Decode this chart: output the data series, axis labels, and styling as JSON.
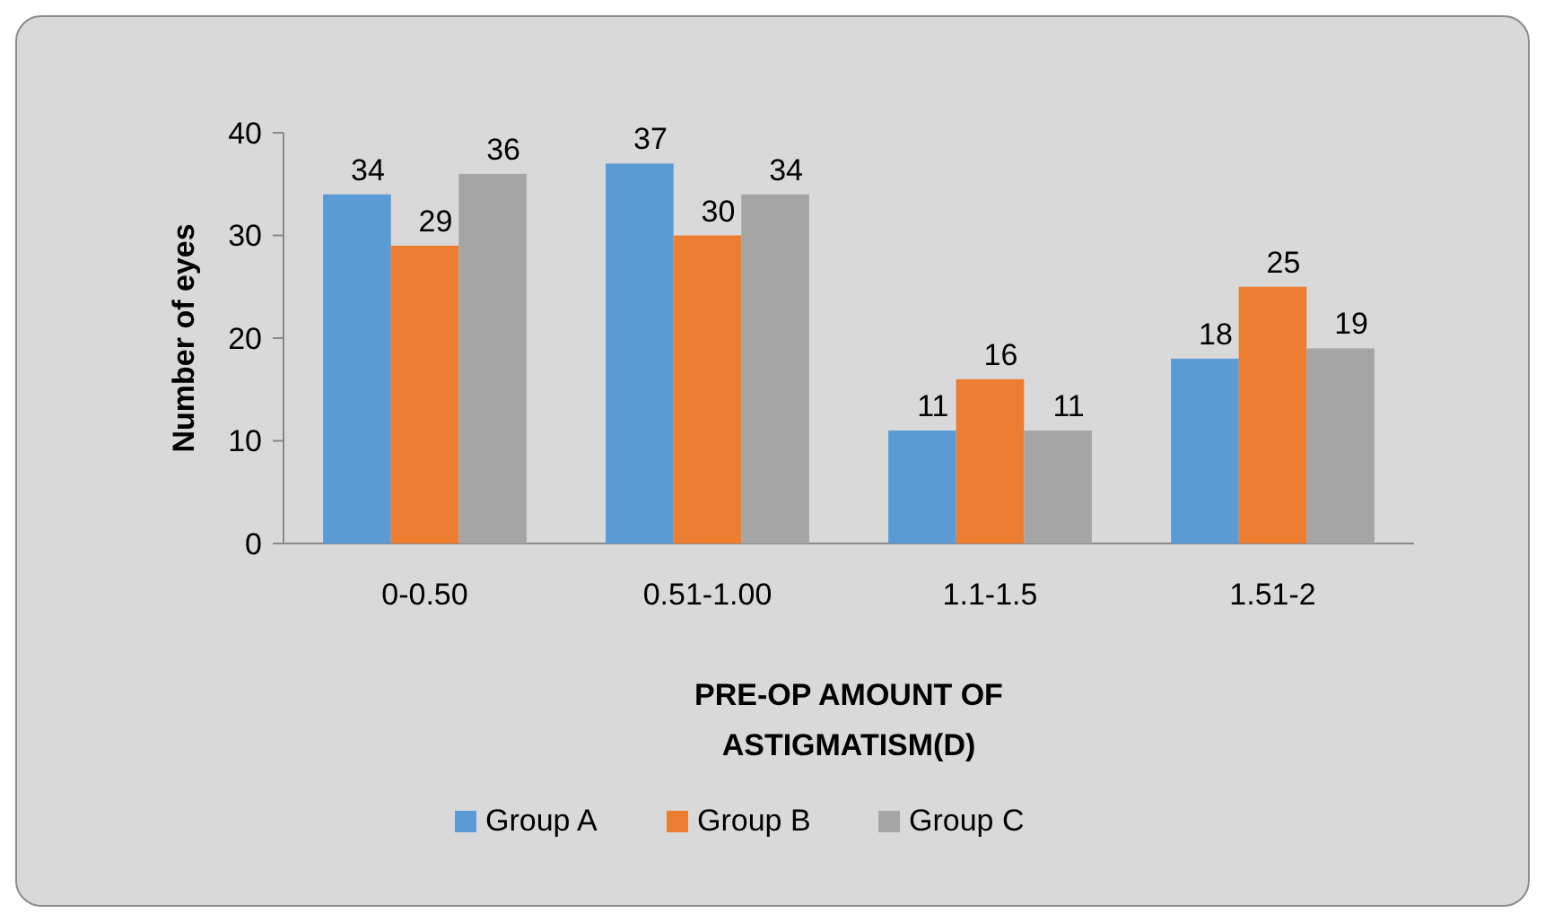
{
  "chart_data": {
    "type": "bar",
    "categories": [
      "0-0.50",
      "0.51-1.00",
      "1.1-1.5",
      "1.51-2"
    ],
    "series": [
      {
        "name": "Group A",
        "color": "#5b9bd5",
        "values": [
          34,
          37,
          11,
          18
        ]
      },
      {
        "name": "Group B",
        "color": "#ed7d31",
        "values": [
          29,
          30,
          16,
          25
        ]
      },
      {
        "name": "Group C",
        "color": "#a5a5a5",
        "values": [
          36,
          34,
          11,
          19
        ]
      }
    ],
    "xlabel": "PRE-OP AMOUNT OF ASTIGMATISM(D)",
    "ylabel": "Number of eyes",
    "ylim": [
      0,
      40
    ],
    "yticks": [
      0,
      10,
      20,
      30,
      40
    ],
    "data_labels": true,
    "legend": "bottom"
  }
}
